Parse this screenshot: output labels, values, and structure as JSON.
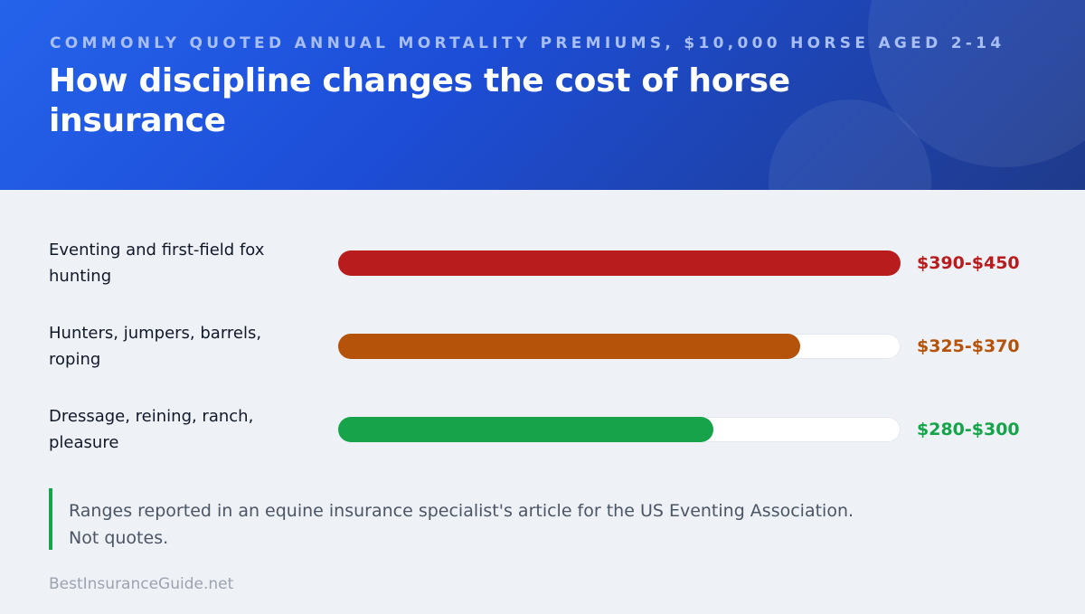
{
  "header": {
    "subtitle": "COMMONLY QUOTED ANNUAL MORTALITY PREMIUMS, $10,000 HORSE AGED 2-14",
    "title": "How discipline changes the cost of horse insurance"
  },
  "chart_data": {
    "type": "bar",
    "orientation": "horizontal",
    "title": "How discipline changes the cost of horse insurance",
    "subtitle": "COMMONLY QUOTED ANNUAL MORTALITY PREMIUMS, $10,000 HORSE AGED 2-14",
    "xlim": [
      0,
      450
    ],
    "grid": false,
    "categories": [
      "Eventing and first-field fox hunting",
      "Hunters, jumpers, barrels, roping",
      "Dressage, reining, ranch, pleasure"
    ],
    "ranges": [
      [
        390,
        450
      ],
      [
        325,
        370
      ],
      [
        280,
        300
      ]
    ],
    "values": [
      450,
      370,
      300
    ],
    "value_labels": [
      "$390-$450",
      "$325-$370",
      "$280-$300"
    ],
    "colors": [
      "#b91c1c",
      "#b45309",
      "#16a34a"
    ]
  },
  "note": "Ranges reported in an equine insurance specialist's article for the US Eventing Association. Not quotes.",
  "footer": "BestInsuranceGuide.net"
}
